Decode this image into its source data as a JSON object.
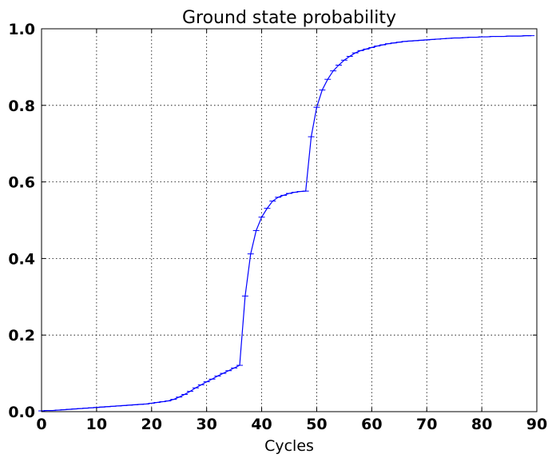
{
  "chart_data": {
    "type": "line",
    "title": "Ground state probability",
    "xlabel": "Cycles",
    "ylabel": "",
    "xlim": [
      0,
      90
    ],
    "ylim": [
      0,
      1.0
    ],
    "xticks": [
      "0",
      "10",
      "20",
      "30",
      "40",
      "50",
      "60",
      "70",
      "80",
      "90"
    ],
    "yticks": [
      "0.0",
      "0.2",
      "0.4",
      "0.6",
      "0.8",
      "1.0"
    ],
    "grid": true,
    "color": "#0000ff",
    "error_bars": true,
    "series": [
      {
        "x": [
          0,
          1,
          2,
          3,
          4,
          5,
          6,
          7,
          8,
          9,
          10,
          11,
          12,
          13,
          14,
          15,
          16,
          17,
          18,
          19,
          20,
          21,
          22,
          23,
          24,
          25,
          26,
          27,
          28,
          29,
          30,
          31,
          32,
          33,
          34,
          35,
          36,
          37,
          38,
          39,
          40,
          41,
          42,
          43,
          44,
          45,
          46,
          47,
          48,
          49,
          50,
          51,
          52,
          53,
          54,
          55,
          56,
          57,
          58,
          59,
          60,
          61,
          62,
          63,
          64,
          65,
          66,
          67,
          68,
          69,
          70,
          71,
          72,
          73,
          74,
          75,
          76,
          77,
          78,
          79,
          80,
          81,
          82,
          83,
          84,
          85,
          86,
          87,
          88,
          89
        ],
        "y": [
          0.002,
          0.003,
          0.003,
          0.004,
          0.005,
          0.006,
          0.007,
          0.008,
          0.009,
          0.01,
          0.011,
          0.012,
          0.013,
          0.014,
          0.015,
          0.016,
          0.017,
          0.018,
          0.019,
          0.02,
          0.022,
          0.024,
          0.026,
          0.028,
          0.032,
          0.038,
          0.045,
          0.053,
          0.062,
          0.07,
          0.078,
          0.085,
          0.093,
          0.1,
          0.107,
          0.114,
          0.121,
          0.302,
          0.412,
          0.473,
          0.508,
          0.531,
          0.55,
          0.56,
          0.565,
          0.57,
          0.573,
          0.575,
          0.576,
          0.718,
          0.795,
          0.84,
          0.868,
          0.89,
          0.905,
          0.918,
          0.928,
          0.937,
          0.943,
          0.947,
          0.951,
          0.955,
          0.958,
          0.961,
          0.963,
          0.965,
          0.967,
          0.968,
          0.969,
          0.97,
          0.971,
          0.972,
          0.973,
          0.974,
          0.975,
          0.976,
          0.976,
          0.977,
          0.978,
          0.978,
          0.979,
          0.979,
          0.98,
          0.98,
          0.98,
          0.981,
          0.981,
          0.981,
          0.982,
          0.982
        ]
      }
    ]
  }
}
